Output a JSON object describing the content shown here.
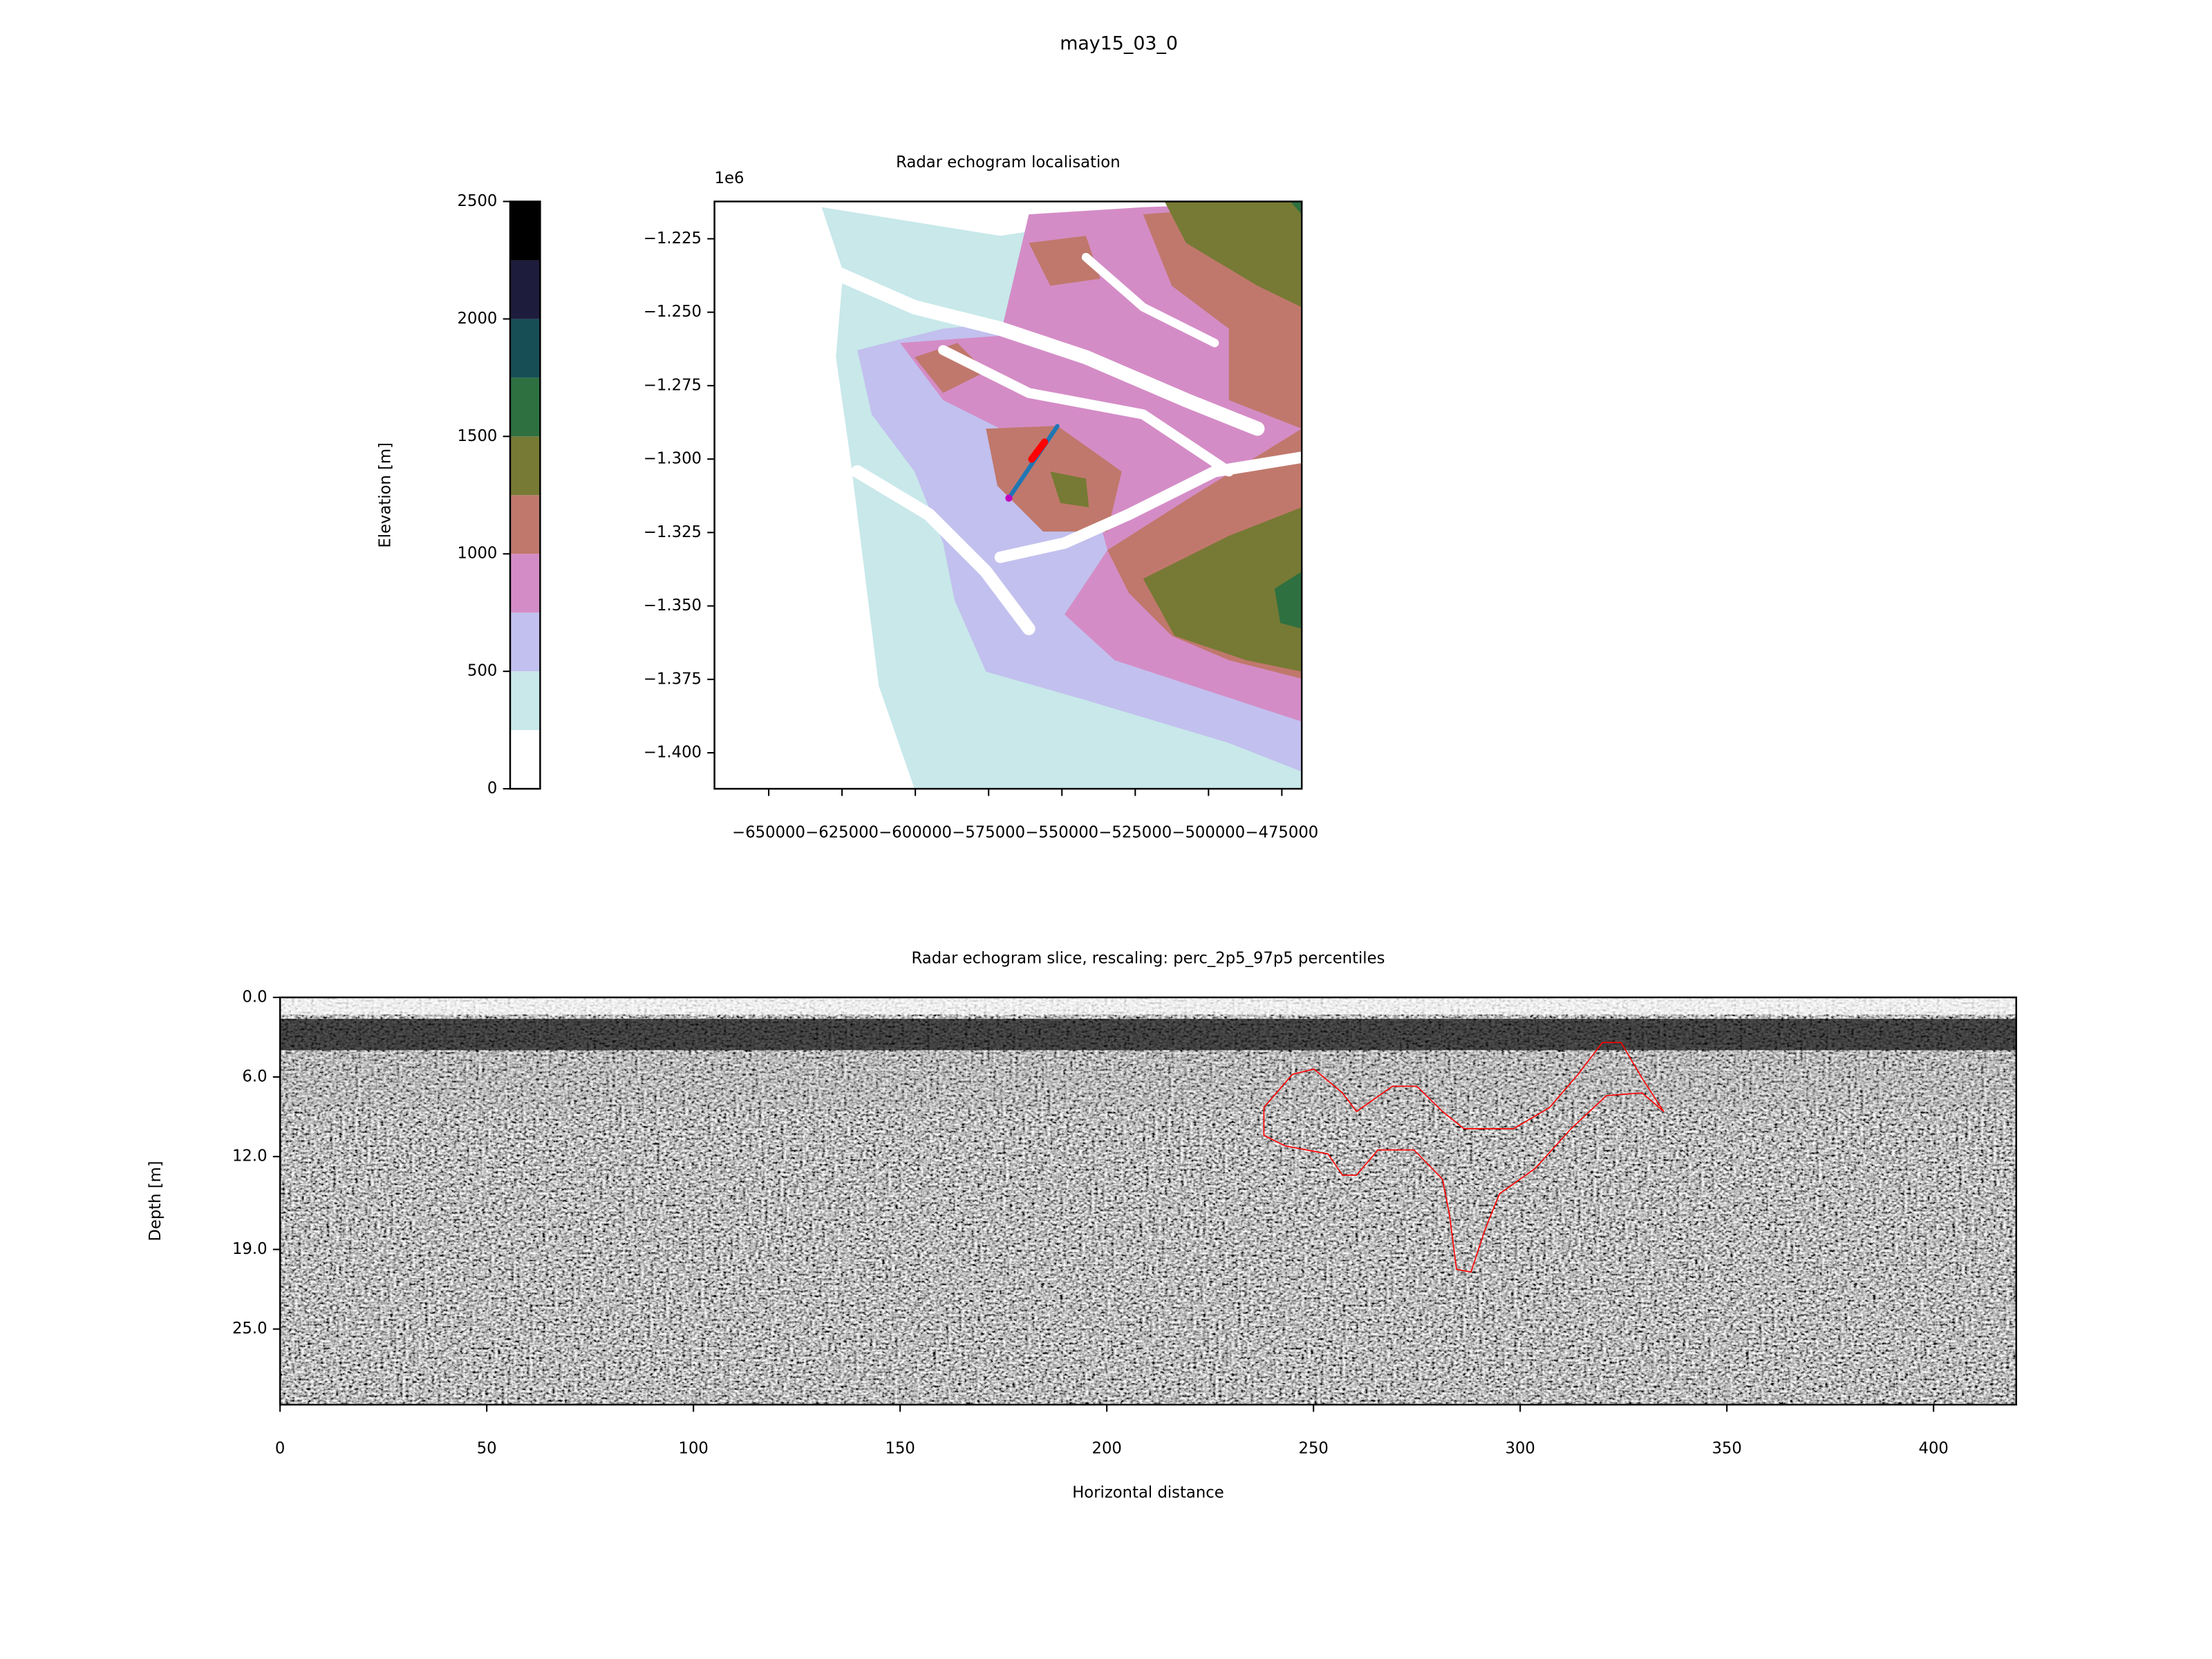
{
  "title": "may15_03_0",
  "chart_data": [
    {
      "type": "colorbar",
      "ylabel": "Elevation [m]",
      "bins": [
        0,
        250,
        500,
        750,
        1000,
        1250,
        1500,
        1750,
        2000,
        2250,
        2500
      ],
      "colors": [
        "#ffffff",
        "#c8e8ea",
        "#c2c0ee",
        "#d48cc6",
        "#c0786c",
        "#767a34",
        "#2e7040",
        "#174e56",
        "#1e1c3c",
        "#000000"
      ],
      "ylim": [
        0,
        2500
      ],
      "yticks": [
        0,
        500,
        1000,
        1500,
        2000,
        2500
      ]
    },
    {
      "type": "map",
      "title": "Radar echogram localisation",
      "y_offset_label": "1e6",
      "xlim": [
        -668500,
        -468200
      ],
      "ylim": [
        -1412250,
        -1212300
      ],
      "xticks": [
        {
          "value": -650000,
          "label": "−650000"
        },
        {
          "value": -625000,
          "label": "−625000"
        },
        {
          "value": -600000,
          "label": "−600000"
        },
        {
          "value": -575000,
          "label": "−575000"
        },
        {
          "value": -550000,
          "label": "−550000"
        },
        {
          "value": -525000,
          "label": "−525000"
        },
        {
          "value": -500000,
          "label": "−500000"
        },
        {
          "value": -475000,
          "label": "−475000"
        }
      ],
      "yticks": [
        {
          "value": -1225000,
          "label": "−1.225"
        },
        {
          "value": -1250000,
          "label": "−1.250"
        },
        {
          "value": -1275000,
          "label": "−1.275"
        },
        {
          "value": -1300000,
          "label": "−1.300"
        },
        {
          "value": -1325000,
          "label": "−1.325"
        },
        {
          "value": -1350000,
          "label": "−1.350"
        },
        {
          "value": -1375000,
          "label": "−1.375"
        },
        {
          "value": -1400000,
          "label": "−1.400"
        }
      ],
      "series": [
        {
          "color": "#1f77b4",
          "linewidth": 3,
          "x": [
            -568100,
            -551550
          ],
          "values": [
            -1313300,
            -1288770
          ]
        },
        {
          "color": "#ff0000",
          "linewidth": 5,
          "x": [
            -560300,
            -555900
          ],
          "values": [
            -1300050,
            -1294200
          ]
        },
        {
          "color": "#c000c0",
          "marker": true,
          "x": [
            -568100
          ],
          "values": [
            -1313300
          ]
        }
      ]
    },
    {
      "type": "image",
      "title": "Radar echogram slice, rescaling: perc_2p5_97p5 percentiles",
      "xlabel": "Horizontal distance",
      "ylabel": "Depth [m]",
      "xlim": [
        0,
        420
      ],
      "ylim": [
        30.7,
        0
      ],
      "xticks": [
        0,
        50,
        100,
        150,
        200,
        250,
        300,
        350,
        400
      ],
      "yticks": [
        {
          "value": 0,
          "label": "0.0"
        },
        {
          "value": 6,
          "label": "6.0"
        },
        {
          "value": 12,
          "label": "12.0"
        },
        {
          "value": 19,
          "label": "19.0"
        },
        {
          "value": 25,
          "label": "25.0"
        }
      ],
      "series": [
        {
          "color": "#ff0000",
          "linewidth": 0.8,
          "x": [
            238.0,
            244.9,
            250.1,
            257.0,
            260.4,
            269.1,
            275.0,
            281.2,
            286.4,
            298.4,
            307.1,
            314.0,
            319.9,
            324.4,
            329.5,
            334.7,
            329.5,
            320.9,
            312.3,
            303.6,
            295.0,
            291.5,
            288.1,
            284.6,
            282.9,
            281.2,
            274.3,
            265.6,
            260.4,
            257.0,
            253.5,
            243.2,
            238.0,
            238.0
          ],
          "values": [
            8.3,
            5.8,
            5.4,
            7.2,
            8.6,
            6.7,
            6.7,
            8.6,
            9.9,
            9.9,
            8.3,
            5.8,
            3.4,
            3.4,
            6.1,
            8.6,
            7.2,
            7.4,
            9.9,
            12.9,
            14.8,
            17.5,
            20.7,
            20.5,
            16.4,
            13.7,
            11.5,
            11.5,
            13.4,
            13.4,
            11.8,
            11.2,
            10.4,
            8.3
          ]
        }
      ]
    }
  ]
}
